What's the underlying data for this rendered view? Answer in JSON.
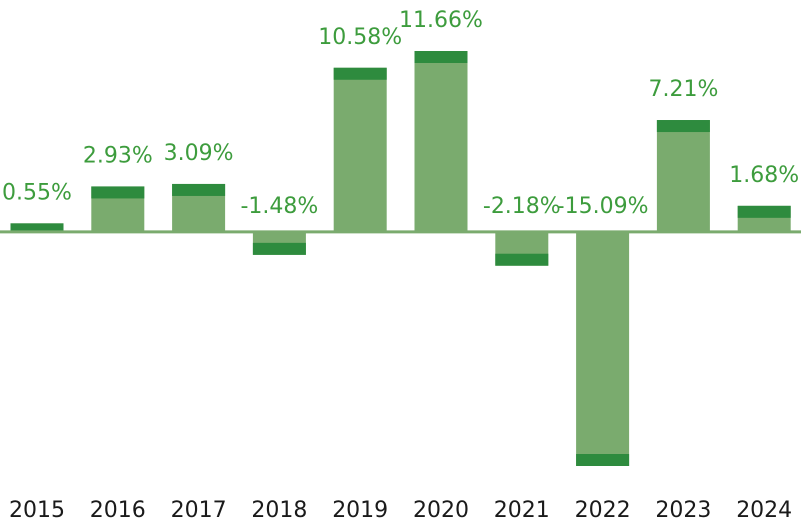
{
  "chart_data": {
    "type": "bar",
    "categories": [
      "2015",
      "2016",
      "2017",
      "2018",
      "2019",
      "2020",
      "2021",
      "2022",
      "2023",
      "2024"
    ],
    "values": [
      0.55,
      2.93,
      3.09,
      -1.48,
      10.58,
      11.66,
      -2.18,
      -15.09,
      7.21,
      1.68
    ],
    "value_labels": [
      "0.55%",
      "2.93%",
      "3.09%",
      "-1.48%",
      "10.58%",
      "11.66%",
      "-2.18%",
      "-15.09%",
      "7.21%",
      "1.68%"
    ],
    "color": "#7aab6e",
    "cap_color": "#2e8b3e",
    "label_color": "#3d9c3d"
  }
}
